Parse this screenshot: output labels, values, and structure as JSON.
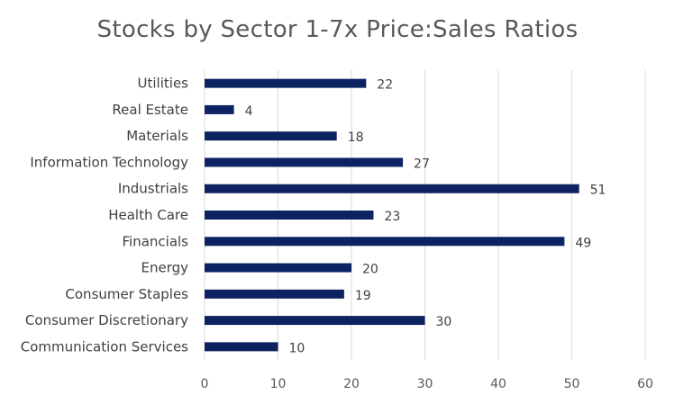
{
  "chart_data": {
    "type": "bar",
    "orientation": "horizontal",
    "title": "Stocks by Sector 1-7x Price:Sales Ratios",
    "xlabel": "",
    "ylabel": "",
    "categories": [
      "Utilities",
      "Real Estate",
      "Materials",
      "Information Technology",
      "Industrials",
      "Health Care",
      "Financials",
      "Energy",
      "Consumer Staples",
      "Consumer Discretionary",
      "Communication Services"
    ],
    "values": [
      22,
      4,
      18,
      27,
      51,
      23,
      49,
      20,
      19,
      30,
      10
    ],
    "xlim": [
      0,
      60
    ],
    "x_ticks": [
      0,
      10,
      20,
      30,
      40,
      50,
      60
    ],
    "grid": "vertical",
    "legend": "none",
    "bar_color": "#0d2260",
    "data_labels": true
  }
}
